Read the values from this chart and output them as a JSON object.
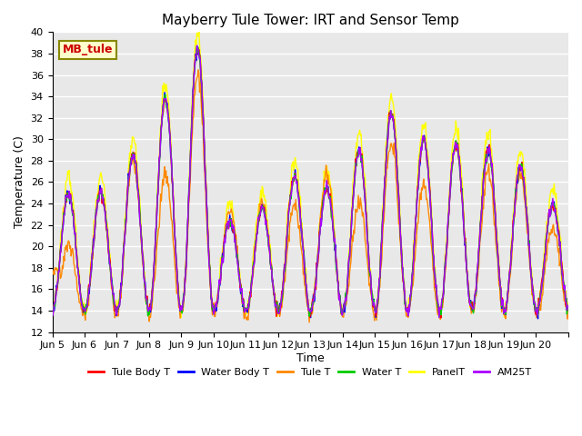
{
  "title": "Mayberry Tule Tower: IRT and Sensor Temp",
  "xlabel": "Time",
  "ylabel": "Temperature (C)",
  "ylim": [
    12,
    40
  ],
  "yticks": [
    12,
    14,
    16,
    18,
    20,
    22,
    24,
    26,
    28,
    30,
    32,
    34,
    36,
    38,
    40
  ],
  "xtick_positions": [
    0,
    1,
    2,
    3,
    4,
    5,
    6,
    7,
    8,
    9,
    10,
    11,
    12,
    13,
    14,
    15,
    16
  ],
  "xtick_labels": [
    "Jun 5",
    "Jun 6",
    "Jun 7",
    "Jun 8",
    "Jun 9",
    "Jun 10",
    "Jun 11",
    "Jun 12",
    "Jun 13",
    "Jun 14",
    "Jun 15",
    "Jun 16",
    "Jun 17",
    "Jun 18",
    "Jun 19",
    "Jun 20",
    ""
  ],
  "legend_labels": [
    "Tule Body T",
    "Water Body T",
    "Tule T",
    "Water T",
    "PanelT",
    "AM25T"
  ],
  "line_colors": [
    "#ff0000",
    "#0000ff",
    "#ff8800",
    "#00cc00",
    "#ffff00",
    "#aa00ff"
  ],
  "annotation_text": "MB_tule",
  "annotation_color": "#cc0000",
  "annotation_bg": "#ffffcc",
  "annotation_border": "#888800",
  "background_color": "#e8e8e8",
  "grid_color": "#ffffff",
  "num_days": 16,
  "points_per_day": 48,
  "base_night_temp": 14.0,
  "day_peaks": [
    25.0,
    25.0,
    28.5,
    33.8,
    38.5,
    22.5,
    23.5,
    26.5,
    25.5,
    29.0,
    32.5,
    30.0,
    29.5,
    29.0,
    27.5,
    24.0
  ],
  "tule_peaks": [
    18.0,
    25.5,
    27.8,
    23.5,
    35.0,
    23.8,
    24.2,
    22.5,
    27.5,
    22.0,
    28.5,
    24.0,
    29.5,
    26.0,
    26.5,
    21.0
  ],
  "panel_extra": 1.5
}
